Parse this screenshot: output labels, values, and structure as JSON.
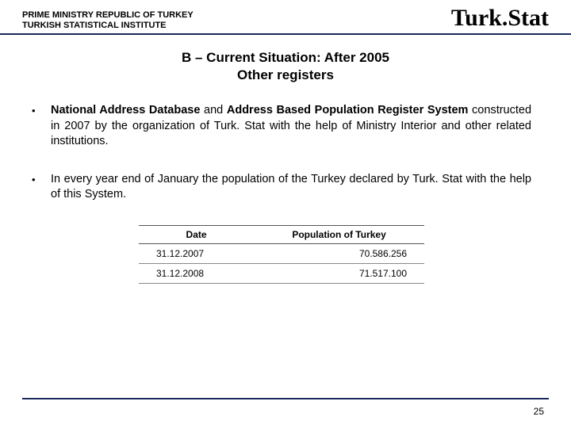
{
  "header": {
    "org_line1": "PRIME MINISTRY REPUBLIC OF TURKEY",
    "org_line2": "TURKISH STATISTICAL INSTITUTE",
    "logo_text": "Turk.Stat"
  },
  "title": {
    "line1": "B – Current Situation: After 2005",
    "line2": "Other registers"
  },
  "bullets": [
    {
      "segments": [
        {
          "text": "National Address Database",
          "bold": true
        },
        {
          "text": " and ",
          "bold": false
        },
        {
          "text": "Address Based Population Register System",
          "bold": true
        },
        {
          "text": " constructed in 2007 by the organization of Turk. Stat with the help of Ministry Interior and other related institutions.",
          "bold": false
        }
      ]
    },
    {
      "segments": [
        {
          "text": "In every year end of January the population of the Turkey declared by Turk. Stat with the help of this System.",
          "bold": false
        }
      ]
    }
  ],
  "table": {
    "columns": [
      "Date",
      "Population of Turkey"
    ],
    "rows": [
      [
        "31.12.2007",
        "70.586.256"
      ],
      [
        "31.12.2008",
        "71.517.100"
      ]
    ],
    "col_align": [
      "left",
      "right"
    ]
  },
  "page_number": "25",
  "colors": {
    "rule": "#1a2a5a",
    "text": "#000000",
    "background": "#ffffff"
  }
}
